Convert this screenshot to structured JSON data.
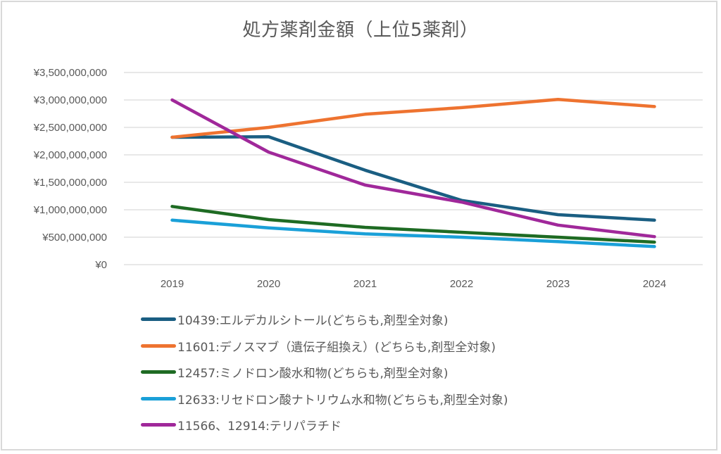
{
  "chart_data": {
    "type": "line",
    "title": "処方薬剤金額（上位5薬剤）",
    "xlabel": "",
    "ylabel": "",
    "categories": [
      "2019",
      "2020",
      "2021",
      "2022",
      "2023",
      "2024"
    ],
    "ylim": [
      0,
      3500000000
    ],
    "ytick_values": [
      0,
      500000000,
      1000000000,
      1500000000,
      2000000000,
      2500000000,
      3000000000,
      3500000000
    ],
    "ytick_labels": [
      "¥0",
      "¥500,000,000",
      "¥1,000,000,000",
      "¥1,500,000,000",
      "¥2,000,000,000",
      "¥2,500,000,000",
      "¥3,000,000,000",
      "¥3,500,000,000"
    ],
    "grid": true,
    "legend_position": "bottom",
    "series": [
      {
        "name": "10439:エルデカルシトール(どちらも,剤型全対象)",
        "color": "#1a5e82",
        "values": [
          2320000000,
          2330000000,
          1720000000,
          1170000000,
          910000000,
          810000000
        ]
      },
      {
        "name": "11601:デノスマブ（遺伝子組換え）(どちらも,剤型全対象)",
        "color": "#ee7330",
        "values": [
          2320000000,
          2500000000,
          2740000000,
          2860000000,
          3010000000,
          2880000000
        ]
      },
      {
        "name": "12457:ミノドロン酸水和物(どちらも,剤型全対象)",
        "color": "#1e6b23",
        "values": [
          1060000000,
          820000000,
          680000000,
          590000000,
          500000000,
          410000000
        ]
      },
      {
        "name": "12633:リセドロン酸ナトリウム水和物(どちらも,剤型全対象)",
        "color": "#1aa0d8",
        "values": [
          810000000,
          670000000,
          560000000,
          500000000,
          420000000,
          330000000
        ]
      },
      {
        "name": "11566、12914:テリパラチド",
        "color": "#a0289a",
        "values": [
          3000000000,
          2050000000,
          1450000000,
          1140000000,
          720000000,
          510000000
        ]
      }
    ]
  },
  "colors": {
    "grid": "#d9d9d9",
    "text": "#595959",
    "frame": "#d9d9d9"
  }
}
